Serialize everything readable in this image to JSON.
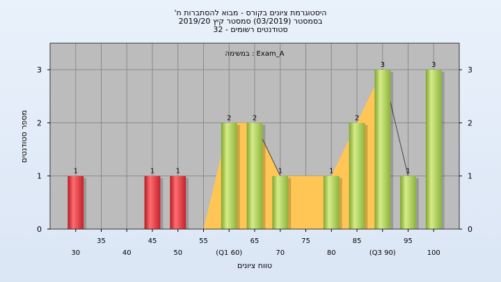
{
  "chart_data": {
    "type": "bar",
    "title_lines": [
      "'היסטוגרמת ציונים בקורס - מבוא להסתברות ח",
      "בסמסטר  (03/2019)  סמסטר קיץ 2019/20",
      "סטודנטים רשומים - 32"
    ],
    "annotation": "במשימה : Exam_A",
    "xlabel": "טווח ציונים",
    "ylabel": "מספר סטודנטים",
    "x_ticks": [
      {
        "x": 30,
        "label": "30",
        "row": 1
      },
      {
        "x": 35,
        "label": "35",
        "row": 0
      },
      {
        "x": 40,
        "label": "40",
        "row": 1
      },
      {
        "x": 45,
        "label": "45",
        "row": 0
      },
      {
        "x": 50,
        "label": "50",
        "row": 1
      },
      {
        "x": 55,
        "label": "55",
        "row": 0
      },
      {
        "x": 60,
        "label": "(Q1 60)",
        "row": 1
      },
      {
        "x": 65,
        "label": "65",
        "row": 0
      },
      {
        "x": 70,
        "label": "70",
        "row": 1
      },
      {
        "x": 75,
        "label": "75",
        "row": 0
      },
      {
        "x": 80,
        "label": "80",
        "row": 1
      },
      {
        "x": 85,
        "label": "85",
        "row": 0
      },
      {
        "x": 90,
        "label": "(Q3 90)",
        "row": 1
      },
      {
        "x": 95,
        "label": "95",
        "row": 0
      },
      {
        "x": 100,
        "label": "100",
        "row": 1
      }
    ],
    "y_ticks": [
      "0",
      "1",
      "2",
      "3"
    ],
    "ylim": [
      0,
      3.5
    ],
    "xlim": [
      25,
      105
    ],
    "bars": [
      {
        "x": 30,
        "value": 1,
        "color": "red",
        "label": "1"
      },
      {
        "x": 45,
        "value": 1,
        "color": "red",
        "label": "1"
      },
      {
        "x": 50,
        "value": 1,
        "color": "red",
        "label": "1"
      },
      {
        "x": 60,
        "value": 2,
        "color": "green",
        "label": "2"
      },
      {
        "x": 65,
        "value": 2,
        "color": "green",
        "label": "2"
      },
      {
        "x": 70,
        "value": 1,
        "color": "green",
        "label": "1"
      },
      {
        "x": 80,
        "value": 1,
        "color": "green",
        "label": "1"
      },
      {
        "x": 85,
        "value": 2,
        "color": "green",
        "label": "2"
      },
      {
        "x": 90,
        "value": 3,
        "color": "green",
        "label": "3"
      },
      {
        "x": 95,
        "value": 1,
        "color": "green",
        "label": "1"
      },
      {
        "x": 100,
        "value": 3,
        "color": "green",
        "label": "3"
      }
    ],
    "area_polygon": [
      [
        55,
        0
      ],
      [
        60,
        2
      ],
      [
        65,
        2
      ],
      [
        70,
        1
      ],
      [
        80,
        1
      ],
      [
        85,
        2
      ],
      [
        90,
        3
      ],
      [
        90,
        0
      ]
    ],
    "line": [
      [
        65,
        2
      ],
      [
        70,
        1
      ]
    ],
    "line2": [
      [
        90,
        3
      ],
      [
        95,
        1
      ]
    ],
    "grid": true,
    "colors": {
      "plot_bg": "#bcbcbc",
      "grid": "#8a8a8a",
      "area": "#ffc655",
      "red_bar": "#e8343a",
      "green_bar": "#a6c94a"
    }
  }
}
